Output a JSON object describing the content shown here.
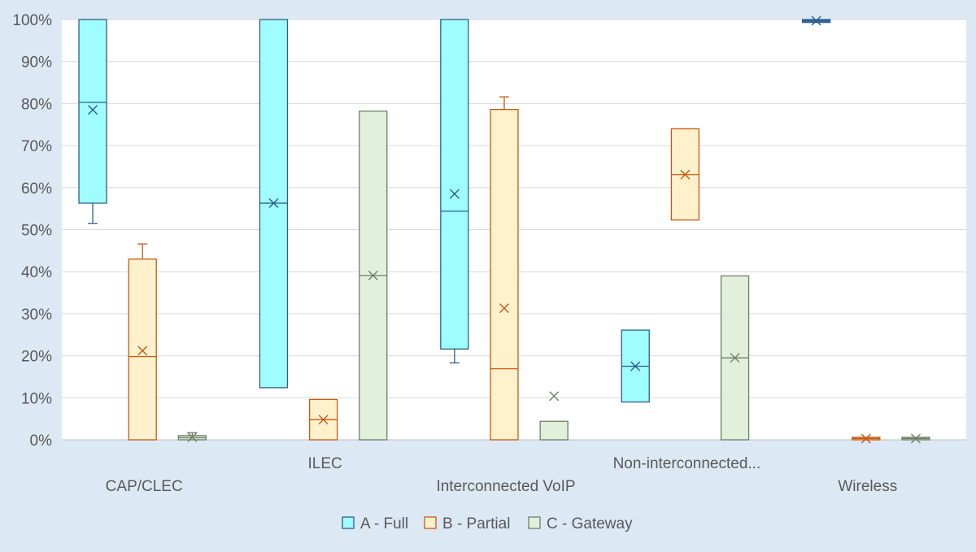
{
  "chart_data": {
    "type": "box",
    "y_ticks": [
      "0%",
      "10%",
      "20%",
      "30%",
      "40%",
      "50%",
      "60%",
      "70%",
      "80%",
      "90%",
      "100%"
    ],
    "ylim": [
      0,
      100
    ],
    "grid": true,
    "legend_position": "bottom",
    "categories": [
      "CAP/CLEC",
      "ILEC",
      "Interconnected VoIP",
      "Non-interconnected...",
      "Wireless"
    ],
    "series": [
      {
        "name": "A - Full",
        "fill": "#9ffcff",
        "stroke": "#2e5f8a",
        "boxes": [
          {
            "whisker_low": 51.5,
            "q1": 56.3,
            "median": 80.3,
            "q3": 100,
            "whisker_high": 100,
            "mean": 78.5
          },
          {
            "whisker_low": 12.4,
            "q1": 12.4,
            "median": 56.3,
            "q3": 100,
            "whisker_high": 100,
            "mean": 56.3
          },
          {
            "whisker_low": 18.3,
            "q1": 21.6,
            "median": 54.4,
            "q3": 100,
            "whisker_high": 100,
            "mean": 58.5
          },
          {
            "whisker_low": 9.0,
            "q1": 9.0,
            "median": 17.5,
            "q3": 26.1,
            "whisker_high": 26.1,
            "mean": 17.5
          },
          {
            "whisker_low": 99.3,
            "q1": 99.3,
            "median": 99.7,
            "q3": 100,
            "whisker_high": 100,
            "mean": 99.7
          }
        ]
      },
      {
        "name": "B - Partial",
        "fill": "#fff1cc",
        "stroke": "#c55a11",
        "boxes": [
          {
            "whisker_low": 0,
            "q1": 0,
            "median": 19.8,
            "q3": 43.0,
            "whisker_high": 46.6,
            "mean": 21.2
          },
          {
            "whisker_low": 0,
            "q1": 0,
            "median": 4.8,
            "q3": 9.6,
            "whisker_high": 9.6,
            "mean": 4.8
          },
          {
            "whisker_low": 0,
            "q1": 0,
            "median": 16.9,
            "q3": 78.6,
            "whisker_high": 81.6,
            "mean": 31.3
          },
          {
            "whisker_low": 52.3,
            "q1": 52.3,
            "median": 63.1,
            "q3": 74.0,
            "whisker_high": 74.0,
            "mean": 63.1
          },
          {
            "whisker_low": 0,
            "q1": 0,
            "median": 0.3,
            "q3": 0.6,
            "whisker_high": 0.6,
            "mean": 0.3
          }
        ]
      },
      {
        "name": "C - Gateway",
        "fill": "#e2efda",
        "stroke": "#6f7f66",
        "boxes": [
          {
            "whisker_low": 0,
            "q1": 0,
            "median": 0.5,
            "q3": 1.0,
            "whisker_high": 1.7,
            "mean": 0.6
          },
          {
            "whisker_low": 0,
            "q1": 0,
            "median": 39.1,
            "q3": 78.2,
            "whisker_high": 78.2,
            "mean": 39.1
          },
          {
            "whisker_low": 0,
            "q1": 0,
            "median": 0,
            "q3": 4.4,
            "whisker_high": 4.4,
            "mean": 10.4
          },
          {
            "whisker_low": 0,
            "q1": 0,
            "median": 19.5,
            "q3": 39.0,
            "whisker_high": 39.0,
            "mean": 19.5
          },
          {
            "whisker_low": 0,
            "q1": 0,
            "median": 0.3,
            "q3": 0.6,
            "whisker_high": 0.6,
            "mean": 0.3
          }
        ]
      }
    ]
  }
}
